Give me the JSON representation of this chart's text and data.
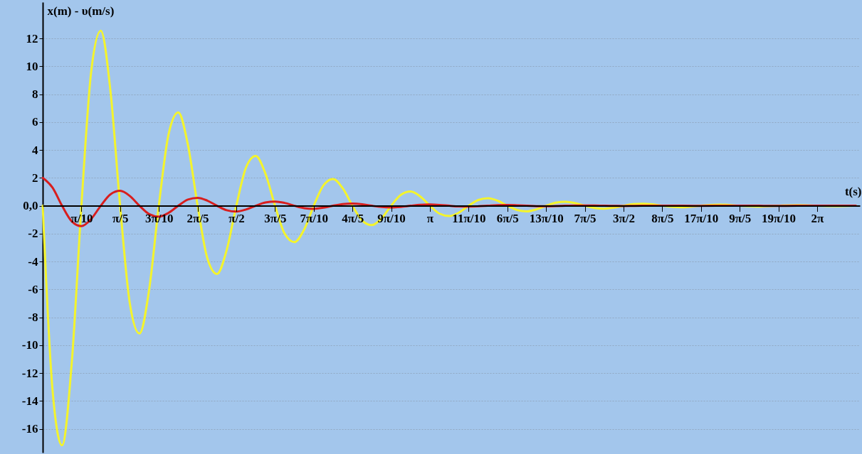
{
  "chart_data": {
    "type": "line",
    "xlabel": "t(s)",
    "ylabel": "x(m) - υ(m/s)",
    "x": [
      0,
      0.079,
      0.157,
      0.236,
      0.314,
      0.393,
      0.471,
      0.55,
      0.628,
      0.707,
      0.785,
      0.864,
      0.942,
      1.021,
      1.1,
      1.178,
      1.257,
      1.335,
      1.414,
      1.492,
      1.571,
      1.649,
      1.728,
      1.806,
      1.885,
      1.963,
      2.042,
      2.121,
      2.199,
      2.278,
      2.356,
      2.435,
      2.513,
      2.592,
      2.67,
      2.749,
      2.827,
      2.906,
      2.985,
      3.063,
      3.142,
      3.22,
      3.299,
      3.377,
      3.456,
      3.534,
      3.613,
      3.691,
      3.77,
      3.848,
      3.927,
      4.006,
      4.084,
      4.163,
      4.241,
      4.32,
      4.398,
      4.477,
      4.555,
      4.634,
      4.712,
      4.791,
      4.869,
      4.948,
      5.027,
      5.184,
      5.341,
      5.498,
      5.655,
      5.812,
      5.969,
      6.126,
      6.283,
      6.44,
      6.597
    ],
    "series": [
      {
        "color": "#f4f42c",
        "values": [
          0,
          -13.14,
          -17.18,
          -11.23,
          0,
          9.59,
          12.55,
          8.2,
          0,
          -7.01,
          -9.16,
          -5.99,
          0,
          5.12,
          6.69,
          4.38,
          0,
          -3.74,
          -4.89,
          -3.2,
          0,
          2.73,
          3.57,
          2.33,
          0,
          -2.0,
          -2.61,
          -1.71,
          0,
          1.46,
          1.91,
          1.24,
          0,
          -1.06,
          -1.39,
          -0.91,
          0,
          0.78,
          1.02,
          0.67,
          0,
          -0.57,
          -0.74,
          -0.49,
          0,
          0.41,
          0.54,
          0.36,
          0,
          -0.3,
          -0.4,
          -0.26,
          0,
          0.22,
          0.29,
          0.19,
          0,
          -0.16,
          -0.21,
          -0.14,
          0,
          0.12,
          0.15,
          0.1,
          0,
          -0.11,
          0,
          0.08,
          0,
          -0.06,
          0,
          0.04,
          0,
          -0.03,
          0
        ]
      },
      {
        "color": "#d81e1e",
        "values": [
          2.0,
          1.31,
          0,
          -1.12,
          -1.46,
          -0.95,
          0,
          0.82,
          1.07,
          0.7,
          0,
          -0.6,
          -0.78,
          -0.51,
          0,
          0.44,
          0.57,
          0.37,
          0,
          -0.32,
          -0.42,
          -0.27,
          0,
          0.23,
          0.3,
          0.2,
          0,
          -0.17,
          -0.22,
          -0.14,
          0,
          0.12,
          0.16,
          0.11,
          0,
          -0.09,
          -0.12,
          -0.08,
          0,
          0.07,
          0.09,
          0.06,
          0,
          -0.05,
          -0.06,
          -0.04,
          0,
          0.04,
          0.05,
          0.03,
          0,
          -0.03,
          -0.03,
          -0.02,
          0,
          0.02,
          0.02,
          0.02,
          0,
          -0.01,
          -0.02,
          -0.01,
          0,
          0.01,
          0.01,
          0,
          -0.01,
          0,
          0.01,
          0,
          -0.01,
          0,
          0,
          0,
          0
        ]
      }
    ],
    "xlim": [
      0,
      6.63
    ],
    "ylim": [
      -17.7,
      14.6
    ],
    "xticks": [
      {
        "value": 0.31416,
        "label": "π/10"
      },
      {
        "value": 0.62832,
        "label": "π/5"
      },
      {
        "value": 0.94248,
        "label": "3π/10"
      },
      {
        "value": 1.25664,
        "label": "2π/5"
      },
      {
        "value": 1.5708,
        "label": "π/2"
      },
      {
        "value": 1.88496,
        "label": "3π/5"
      },
      {
        "value": 2.19911,
        "label": "7π/10"
      },
      {
        "value": 2.51327,
        "label": "4π/5"
      },
      {
        "value": 2.82743,
        "label": "9π/10"
      },
      {
        "value": 3.14159,
        "label": "π"
      },
      {
        "value": 3.45575,
        "label": "11π/10"
      },
      {
        "value": 3.76991,
        "label": "6π/5"
      },
      {
        "value": 4.08407,
        "label": "13π/10"
      },
      {
        "value": 4.39823,
        "label": "7π/5"
      },
      {
        "value": 4.71239,
        "label": "3π/2"
      },
      {
        "value": 5.02655,
        "label": "8π/5"
      },
      {
        "value": 5.34071,
        "label": "17π/10"
      },
      {
        "value": 5.65487,
        "label": "9π/5"
      },
      {
        "value": 5.96903,
        "label": "19π/10"
      },
      {
        "value": 6.28319,
        "label": "2π"
      }
    ],
    "yticks": [
      -16,
      -14,
      -12,
      -10,
      -8,
      -6,
      -4,
      -2,
      {
        "value": 0,
        "label": "0,0"
      },
      2,
      4,
      6,
      8,
      10,
      12
    ],
    "grid": "y",
    "marker": "none",
    "line_style": "solid"
  }
}
